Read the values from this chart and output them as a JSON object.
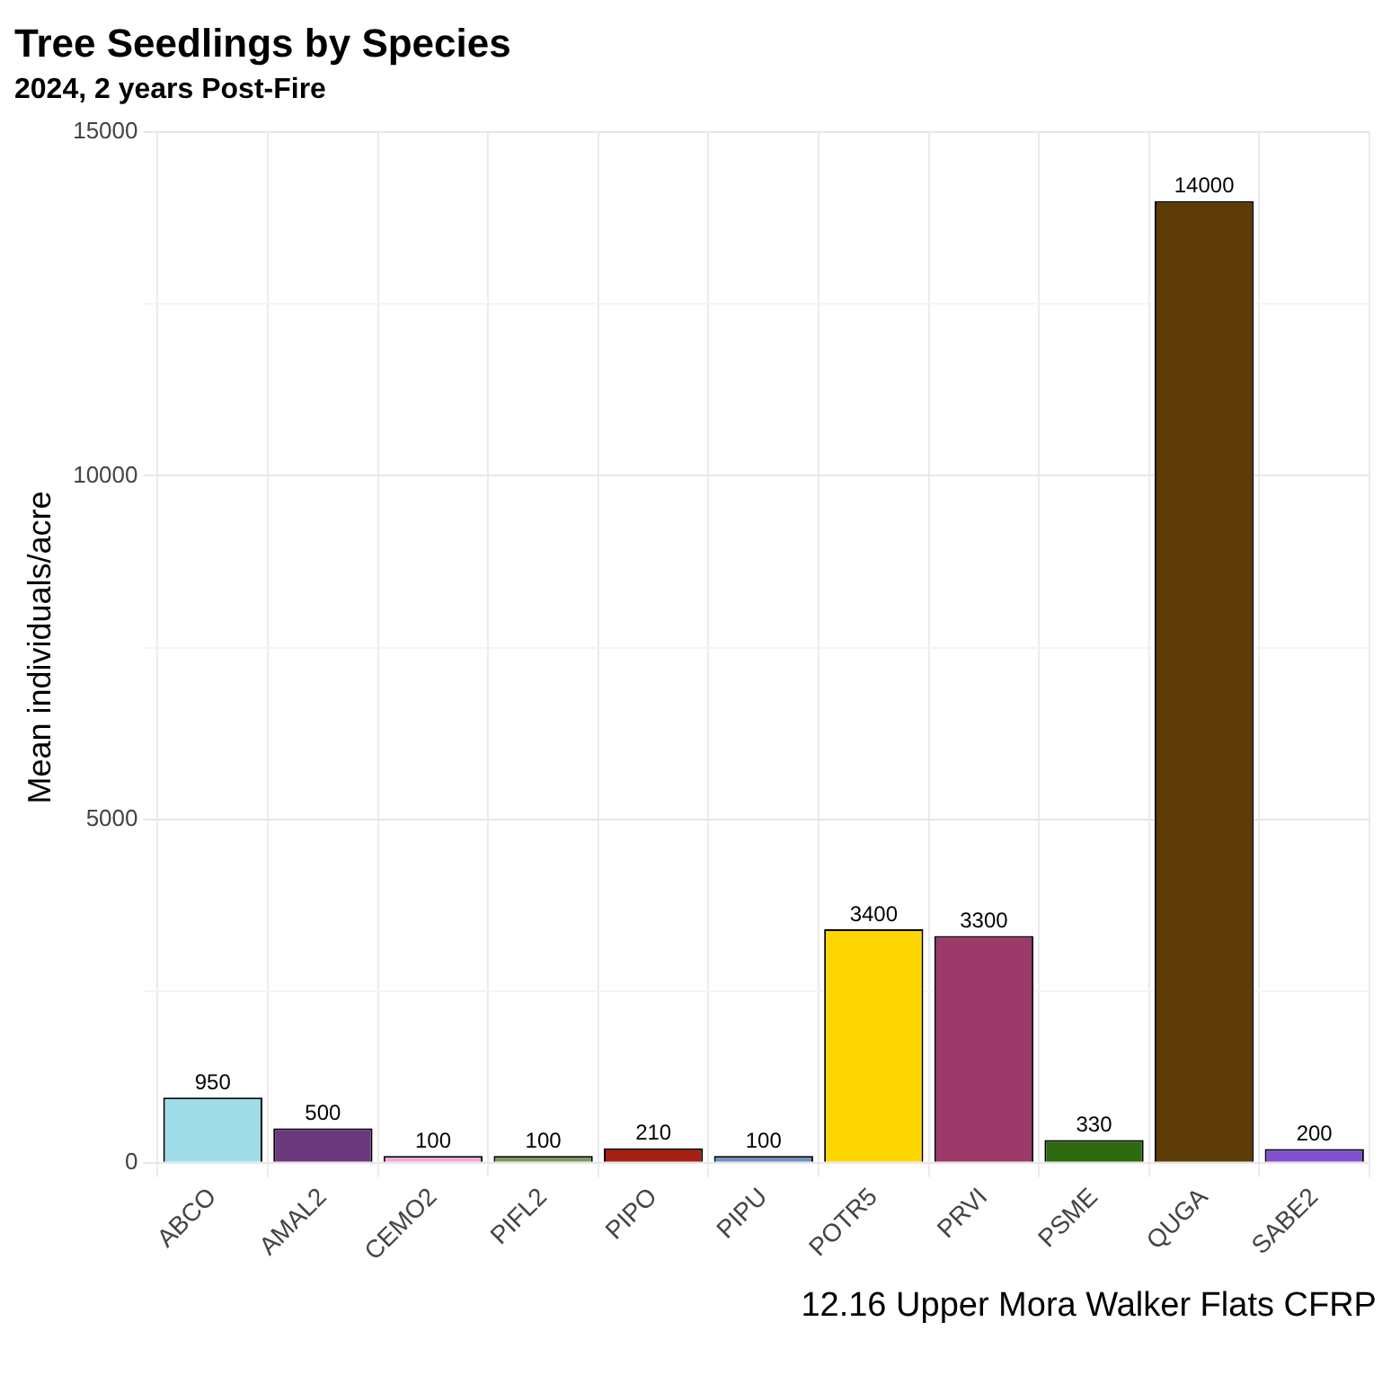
{
  "chart_data": {
    "type": "bar",
    "title": "Tree Seedlings by Species",
    "subtitle": "2024, 2 years Post-Fire",
    "ylabel": "Mean individuals/acre",
    "categories": [
      "ABCO",
      "AMAL2",
      "CEMO2",
      "PIFL2",
      "PIPO",
      "PIPU",
      "POTR5",
      "PRVI",
      "PSME",
      "QUGA",
      "SABE2"
    ],
    "values": [
      950,
      500,
      100,
      100,
      210,
      100,
      3400,
      3300,
      330,
      14000,
      200
    ],
    "colors": [
      "#9edde8",
      "#6b3a7d",
      "#f0a8d8",
      "#7a9a60",
      "#a52010",
      "#7090c0",
      "#ffd700",
      "#9c3a6a",
      "#2e6a10",
      "#5e3c08",
      "#8050d0"
    ],
    "ylim": [
      0,
      15000
    ],
    "yticks": [
      0,
      {
        "value": 2500,
        "label": null
      },
      5000,
      {
        "value": 7500,
        "label": null
      },
      10000,
      {
        "value": 12500,
        "label": null
      },
      15000
    ],
    "grid": true,
    "data_labels": true,
    "legend": false,
    "annotations": [
      "12.16 Upper Mora Walker Flats CFRP"
    ]
  }
}
